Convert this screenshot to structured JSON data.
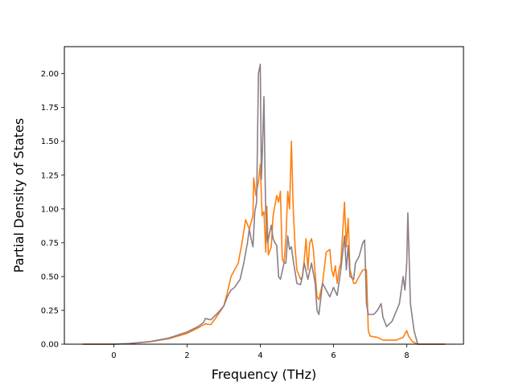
{
  "chart_data": {
    "type": "line",
    "xlabel": "Frequency (THz)",
    "ylabel": "Partial Density of States",
    "xlim": [
      -1.35,
      9.55
    ],
    "ylim": [
      0.0,
      2.2
    ],
    "xticks": [
      0,
      2,
      4,
      6,
      8
    ],
    "yticks": [
      0.0,
      0.25,
      0.5,
      0.75,
      1.0,
      1.25,
      1.5,
      1.75,
      2.0
    ],
    "grid": false,
    "series": [
      {
        "color": "#ff7f0e",
        "points": [
          [
            -0.85,
            0.0
          ],
          [
            0.0,
            0.0
          ],
          [
            0.4,
            0.004
          ],
          [
            1.0,
            0.018
          ],
          [
            1.5,
            0.04
          ],
          [
            2.0,
            0.08
          ],
          [
            2.3,
            0.12
          ],
          [
            2.5,
            0.15
          ],
          [
            2.65,
            0.145
          ],
          [
            2.8,
            0.2
          ],
          [
            3.0,
            0.28
          ],
          [
            3.1,
            0.38
          ],
          [
            3.2,
            0.5
          ],
          [
            3.3,
            0.55
          ],
          [
            3.4,
            0.6
          ],
          [
            3.5,
            0.75
          ],
          [
            3.6,
            0.92
          ],
          [
            3.7,
            0.85
          ],
          [
            3.8,
            0.95
          ],
          [
            3.82,
            1.23
          ],
          [
            3.88,
            1.1
          ],
          [
            3.95,
            1.2
          ],
          [
            4.0,
            1.33
          ],
          [
            4.05,
            0.95
          ],
          [
            4.1,
            0.98
          ],
          [
            4.15,
            0.68
          ],
          [
            4.18,
            1.02
          ],
          [
            4.22,
            0.66
          ],
          [
            4.3,
            0.72
          ],
          [
            4.35,
            0.95
          ],
          [
            4.45,
            1.1
          ],
          [
            4.5,
            1.05
          ],
          [
            4.55,
            1.13
          ],
          [
            4.6,
            0.63
          ],
          [
            4.65,
            0.6
          ],
          [
            4.7,
            0.78
          ],
          [
            4.75,
            1.13
          ],
          [
            4.8,
            1.0
          ],
          [
            4.85,
            1.5
          ],
          [
            4.9,
            1.0
          ],
          [
            4.95,
            0.72
          ],
          [
            5.0,
            0.55
          ],
          [
            5.1,
            0.48
          ],
          [
            5.15,
            0.5
          ],
          [
            5.2,
            0.62
          ],
          [
            5.25,
            0.78
          ],
          [
            5.3,
            0.55
          ],
          [
            5.35,
            0.75
          ],
          [
            5.4,
            0.78
          ],
          [
            5.45,
            0.7
          ],
          [
            5.5,
            0.52
          ],
          [
            5.55,
            0.35
          ],
          [
            5.6,
            0.33
          ],
          [
            5.7,
            0.45
          ],
          [
            5.8,
            0.68
          ],
          [
            5.9,
            0.7
          ],
          [
            5.95,
            0.55
          ],
          [
            6.0,
            0.5
          ],
          [
            6.05,
            0.58
          ],
          [
            6.1,
            0.45
          ],
          [
            6.15,
            0.55
          ],
          [
            6.2,
            0.6
          ],
          [
            6.3,
            1.05
          ],
          [
            6.35,
            0.72
          ],
          [
            6.4,
            0.93
          ],
          [
            6.45,
            0.55
          ],
          [
            6.55,
            0.45
          ],
          [
            6.6,
            0.45
          ],
          [
            6.7,
            0.5
          ],
          [
            6.8,
            0.55
          ],
          [
            6.9,
            0.55
          ],
          [
            6.95,
            0.1
          ],
          [
            7.0,
            0.06
          ],
          [
            7.2,
            0.05
          ],
          [
            7.35,
            0.03
          ],
          [
            7.7,
            0.03
          ],
          [
            7.9,
            0.05
          ],
          [
            8.0,
            0.1
          ],
          [
            8.05,
            0.06
          ],
          [
            8.15,
            0.02
          ],
          [
            8.3,
            0.0
          ],
          [
            9.05,
            0.0
          ]
        ]
      },
      {
        "color": "#8c7e88",
        "points": [
          [
            -0.85,
            0.0
          ],
          [
            0.0,
            0.0
          ],
          [
            0.4,
            0.004
          ],
          [
            1.0,
            0.02
          ],
          [
            1.5,
            0.045
          ],
          [
            2.0,
            0.09
          ],
          [
            2.3,
            0.13
          ],
          [
            2.45,
            0.16
          ],
          [
            2.5,
            0.19
          ],
          [
            2.65,
            0.18
          ],
          [
            2.8,
            0.22
          ],
          [
            3.0,
            0.28
          ],
          [
            3.1,
            0.35
          ],
          [
            3.2,
            0.4
          ],
          [
            3.3,
            0.42
          ],
          [
            3.45,
            0.48
          ],
          [
            3.55,
            0.6
          ],
          [
            3.65,
            0.75
          ],
          [
            3.7,
            0.85
          ],
          [
            3.75,
            0.78
          ],
          [
            3.8,
            0.72
          ],
          [
            3.85,
            0.98
          ],
          [
            3.9,
            1.05
          ],
          [
            3.95,
            2.0
          ],
          [
            4.0,
            2.07
          ],
          [
            4.03,
            1.22
          ],
          [
            4.06,
            1.45
          ],
          [
            4.1,
            1.83
          ],
          [
            4.13,
            1.25
          ],
          [
            4.15,
            0.97
          ],
          [
            4.2,
            0.75
          ],
          [
            4.3,
            0.88
          ],
          [
            4.35,
            0.78
          ],
          [
            4.4,
            0.75
          ],
          [
            4.45,
            0.73
          ],
          [
            4.5,
            0.5
          ],
          [
            4.55,
            0.48
          ],
          [
            4.65,
            0.6
          ],
          [
            4.7,
            0.6
          ],
          [
            4.75,
            0.8
          ],
          [
            4.8,
            0.7
          ],
          [
            4.85,
            0.72
          ],
          [
            4.9,
            0.62
          ],
          [
            5.0,
            0.45
          ],
          [
            5.1,
            0.44
          ],
          [
            5.15,
            0.5
          ],
          [
            5.2,
            0.6
          ],
          [
            5.3,
            0.48
          ],
          [
            5.4,
            0.6
          ],
          [
            5.5,
            0.45
          ],
          [
            5.55,
            0.25
          ],
          [
            5.6,
            0.22
          ],
          [
            5.7,
            0.45
          ],
          [
            5.8,
            0.4
          ],
          [
            5.9,
            0.35
          ],
          [
            6.0,
            0.42
          ],
          [
            6.1,
            0.36
          ],
          [
            6.2,
            0.55
          ],
          [
            6.3,
            0.8
          ],
          [
            6.35,
            0.55
          ],
          [
            6.4,
            0.73
          ],
          [
            6.45,
            0.5
          ],
          [
            6.55,
            0.48
          ],
          [
            6.6,
            0.6
          ],
          [
            6.7,
            0.65
          ],
          [
            6.8,
            0.75
          ],
          [
            6.85,
            0.77
          ],
          [
            6.9,
            0.3
          ],
          [
            6.95,
            0.22
          ],
          [
            7.1,
            0.22
          ],
          [
            7.2,
            0.25
          ],
          [
            7.3,
            0.3
          ],
          [
            7.35,
            0.2
          ],
          [
            7.45,
            0.13
          ],
          [
            7.6,
            0.17
          ],
          [
            7.8,
            0.3
          ],
          [
            7.9,
            0.5
          ],
          [
            7.95,
            0.4
          ],
          [
            8.0,
            0.6
          ],
          [
            8.03,
            0.97
          ],
          [
            8.07,
            0.6
          ],
          [
            8.1,
            0.3
          ],
          [
            8.2,
            0.1
          ],
          [
            8.3,
            0.0
          ],
          [
            9.05,
            0.0
          ]
        ]
      }
    ]
  }
}
